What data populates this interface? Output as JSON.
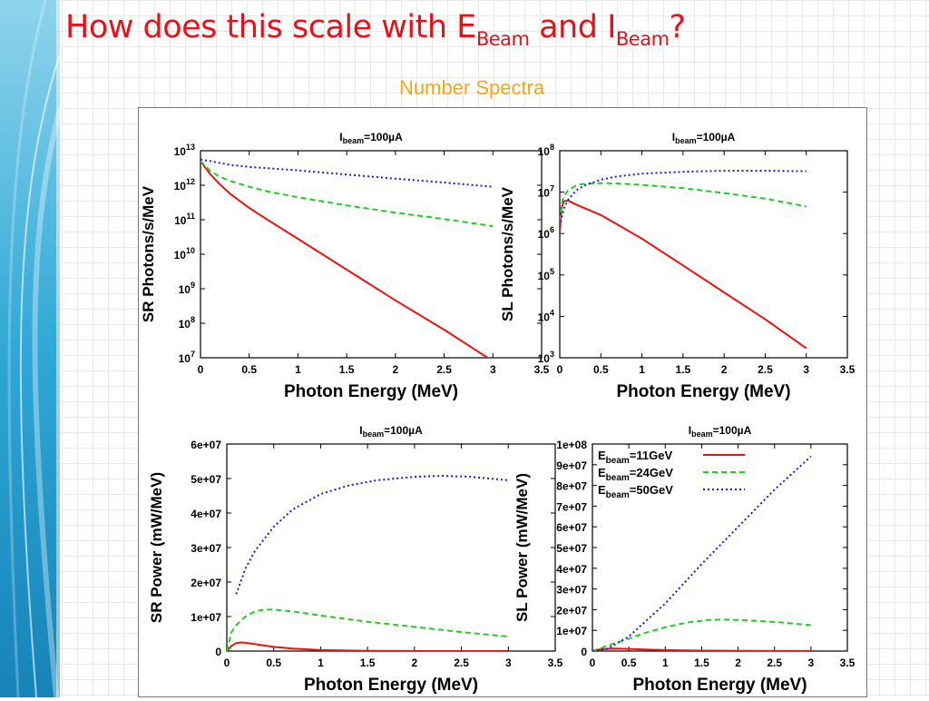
{
  "slide": {
    "title_main": "How does this scale with E",
    "title_sub1": "Beam",
    "title_mid": " and I",
    "title_sub2": "Beam",
    "title_end": "?",
    "subtitle": "Number Spectra"
  },
  "colors": {
    "title": "#e8111a",
    "subtitle": "#f5a51c",
    "series": [
      "#ee1111",
      "#22cc22",
      "#1a1add"
    ]
  },
  "legend": {
    "entries": [
      {
        "base": "E",
        "sub": "beam",
        "rest": "=11GeV"
      },
      {
        "base": "E",
        "sub": "beam",
        "rest": "=24GeV"
      },
      {
        "base": "E",
        "sub": "beam",
        "rest": "=50GeV"
      }
    ]
  },
  "chart_data": [
    {
      "type": "line",
      "title": {
        "base": "I",
        "sub": "beam",
        "rest": "=100µA"
      },
      "xlabel": "Photon Energy (MeV)",
      "ylabel": "SR Photons/s/MeV",
      "yscale": "log",
      "xlim": [
        0,
        3.5
      ],
      "ylim": [
        7,
        13
      ],
      "xticks": [
        "0",
        "0.5",
        "1",
        "1.5",
        "2",
        "2.5",
        "3",
        "3.5"
      ],
      "yticks": [
        {
          "base": "10",
          "exp": "7"
        },
        {
          "base": "10",
          "exp": "8"
        },
        {
          "base": "10",
          "exp": "9"
        },
        {
          "base": "10",
          "exp": "10"
        },
        {
          "base": "10",
          "exp": "11"
        },
        {
          "base": "10",
          "exp": "12"
        },
        {
          "base": "10",
          "exp": "13"
        }
      ],
      "series": [
        {
          "name": "Ebeam=11GeV",
          "x": [
            0,
            0.05,
            0.1,
            0.2,
            0.3,
            0.5,
            0.7,
            1.0,
            1.5,
            2.0,
            2.5,
            3.0
          ],
          "values": [
            5000000000000.0,
            3200000000000.0,
            2100000000000.0,
            1050000000000.0,
            580000000000.0,
            220000000000.0,
            95000000000.0,
            28000000000.0,
            3600000000.0,
            460000000.0,
            65000000.0,
            8000000.0
          ]
        },
        {
          "name": "Ebeam=24GeV",
          "x": [
            0,
            0.1,
            0.2,
            0.3,
            0.5,
            0.7,
            1.0,
            1.5,
            2.0,
            2.5,
            3.0
          ],
          "values": [
            5000000000000.0,
            2600000000000.0,
            1750000000000.0,
            1350000000000.0,
            900000000000.0,
            650000000000.0,
            450000000000.0,
            260000000000.0,
            160000000000.0,
            105000000000.0,
            65000000000.0
          ]
        },
        {
          "name": "Ebeam=50GeV",
          "x": [
            0,
            0.1,
            0.3,
            0.5,
            1.0,
            1.5,
            2.0,
            2.5,
            3.0
          ],
          "values": [
            5500000000000.0,
            5000000000000.0,
            3900000000000.0,
            3400000000000.0,
            2700000000000.0,
            2050000000000.0,
            1550000000000.0,
            1200000000000.0,
            900000000000.0
          ]
        }
      ]
    },
    {
      "type": "line",
      "title": {
        "base": "I",
        "sub": "beam",
        "rest": "=100µA"
      },
      "xlabel": "Photon Energy (MeV)",
      "ylabel": "SL Photons/s/MeV",
      "yscale": "log",
      "xlim": [
        0,
        3.5
      ],
      "ylim": [
        3,
        8
      ],
      "xticks": [
        "0",
        "0.5",
        "1",
        "1.5",
        "2",
        "2.5",
        "3",
        "3.5"
      ],
      "yticks": [
        {
          "base": "10",
          "exp": "3"
        },
        {
          "base": "10",
          "exp": "4"
        },
        {
          "base": "10",
          "exp": "5"
        },
        {
          "base": "10",
          "exp": "6"
        },
        {
          "base": "10",
          "exp": "7"
        },
        {
          "base": "10",
          "exp": "8"
        }
      ],
      "series": [
        {
          "name": "Ebeam=11GeV",
          "x": [
            0,
            0.02,
            0.05,
            0.1,
            0.2,
            0.5,
            1.0,
            1.5,
            2.0,
            2.5,
            3.0
          ],
          "values": [
            1000000.0,
            4000000.0,
            6000000.0,
            6300000.0,
            5000000.0,
            2800000.0,
            750000.0,
            170000.0,
            38000.0,
            8500.0,
            1700.0
          ]
        },
        {
          "name": "Ebeam=24GeV",
          "x": [
            0,
            0.02,
            0.05,
            0.1,
            0.2,
            0.3,
            0.5,
            0.7,
            1.0,
            1.5,
            2.0,
            2.5,
            3.0
          ],
          "values": [
            2000000.0,
            5000000.0,
            8000000.0,
            11000000.0,
            14500000.0,
            16000000.0,
            16500000.0,
            16200000.0,
            15000000.0,
            12500000.0,
            9500000.0,
            7000000.0,
            4500000.0
          ]
        },
        {
          "name": "Ebeam=50GeV",
          "x": [
            0,
            0.05,
            0.1,
            0.2,
            0.3,
            0.5,
            0.7,
            1.0,
            1.5,
            2.0,
            2.5,
            3.0
          ],
          "values": [
            1500000.0,
            4000000.0,
            6500000.0,
            11000000.0,
            14500000.0,
            20000000.0,
            24000000.0,
            28000000.0,
            31000000.0,
            33000000.0,
            33000000.0,
            32000000.0
          ]
        }
      ]
    },
    {
      "type": "line",
      "title": {
        "base": "I",
        "sub": "beam",
        "rest": "=100µA"
      },
      "xlabel": "Photon Energy (MeV)",
      "ylabel": "SR Power (mW/MeV)",
      "yscale": "linear",
      "xlim": [
        0,
        3.5
      ],
      "ylim": [
        0,
        60000000.0
      ],
      "xticks": [
        "0",
        "0.5",
        "1",
        "1.5",
        "2",
        "2.5",
        "3",
        "3.5"
      ],
      "yticks": [
        "0",
        "1e+07",
        "2e+07",
        "3e+07",
        "4e+07",
        "5e+07",
        "6e+07"
      ],
      "series": [
        {
          "name": "Ebeam=11GeV",
          "x": [
            0,
            0.05,
            0.1,
            0.15,
            0.2,
            0.3,
            0.5,
            0.7,
            1.0,
            1.5,
            2.0,
            2.5,
            3.0
          ],
          "values": [
            0,
            1500000.0,
            2300000.0,
            2500000.0,
            2400000.0,
            2000000.0,
            1200000.0,
            700000.0,
            300000.0,
            60000.0,
            10000.0,
            2000.0,
            0
          ]
        },
        {
          "name": "Ebeam=24GeV",
          "x": [
            0,
            0.05,
            0.1,
            0.2,
            0.3,
            0.4,
            0.5,
            0.7,
            1.0,
            1.5,
            2.0,
            2.5,
            3.0
          ],
          "values": [
            0,
            5500000.0,
            7500000.0,
            10000000.0,
            11500000.0,
            12000000.0,
            12000000.0,
            11500000.0,
            10300000.0,
            8500000.0,
            7000000.0,
            5500000.0,
            4200000.0
          ]
        },
        {
          "name": "Ebeam=50GeV",
          "x": [
            0.1,
            0.2,
            0.3,
            0.5,
            0.7,
            1.0,
            1.3,
            1.6,
            2.0,
            2.3,
            2.6,
            3.0
          ],
          "values": [
            16500000.0,
            24000000.0,
            29000000.0,
            36000000.0,
            41000000.0,
            45500000.0,
            48000000.0,
            49500000.0,
            50500000.0,
            50800000.0,
            50500000.0,
            49500000.0
          ]
        }
      ]
    },
    {
      "type": "line",
      "title": {
        "base": "I",
        "sub": "beam",
        "rest": "=100µA"
      },
      "xlabel": "Photon Energy (MeV)",
      "ylabel": "SL Power (mW/MeV)",
      "yscale": "linear",
      "xlim": [
        0,
        3.5
      ],
      "ylim": [
        0,
        100000000.0
      ],
      "xticks": [
        "0",
        "0.5",
        "1",
        "1.5",
        "2",
        "2.5",
        "3",
        "3.5"
      ],
      "yticks": [
        "0",
        "1e+07",
        "2e+07",
        "3e+07",
        "4e+07",
        "5e+07",
        "6e+07",
        "7e+07",
        "8e+07",
        "9e+07",
        "1e+08"
      ],
      "legend_position": "top-left",
      "series": [
        {
          "name": "Ebeam=11GeV",
          "x": [
            0,
            0.1,
            0.2,
            0.3,
            0.5,
            0.7,
            1.0,
            1.5,
            2.0,
            2.5,
            3.0
          ],
          "values": [
            0,
            800000.0,
            1100000.0,
            1200000.0,
            1050000.0,
            800000.0,
            500000.0,
            220000.0,
            90000.0,
            30000.0,
            10000.0
          ]
        },
        {
          "name": "Ebeam=24GeV",
          "x": [
            0,
            0.2,
            0.5,
            0.7,
            1.0,
            1.3,
            1.6,
            1.8,
            2.0,
            2.3,
            2.6,
            3.0
          ],
          "values": [
            0,
            2500000.0,
            6000000.0,
            8500000.0,
            11500000.0,
            13800000.0,
            15000000.0,
            15200000.0,
            15000000.0,
            14500000.0,
            13800000.0,
            12500000.0
          ]
        },
        {
          "name": "Ebeam=50GeV",
          "x": [
            0,
            0.2,
            0.5,
            1.0,
            1.5,
            2.0,
            2.5,
            3.0
          ],
          "values": [
            0,
            1000000.0,
            7000000.0,
            23000000.0,
            42000000.0,
            60000000.0,
            78000000.0,
            94000000.0
          ]
        }
      ]
    }
  ]
}
